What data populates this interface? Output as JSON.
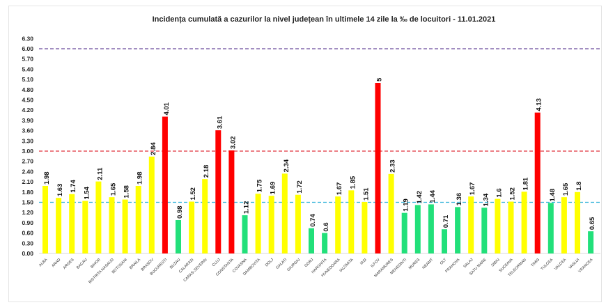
{
  "chart_data": {
    "type": "bar",
    "title": "Incidența cumulată a cazurilor la nivel județean în ultimele 14 zile la ‰ de locuitori - 11.01.2021",
    "xlabel": "",
    "ylabel": "",
    "ylim": [
      0,
      6.3
    ],
    "ytick_step": 0.3,
    "grid": false,
    "categories": [
      "ALBA",
      "ARAD",
      "ARGES",
      "BACAU",
      "BIHOR",
      "BISTRITA NASAUD",
      "BOTOSANI",
      "BRAILA",
      "BRASOV",
      "BUCURESTI",
      "BUZAU",
      "CALARASI",
      "CARAS-SEVERIN",
      "CLUJ",
      "CONSTANTA",
      "COVASNA",
      "DAMBOVITA",
      "DOLJ",
      "GALATI",
      "GIURGIU",
      "GORJ",
      "HARGHITA",
      "HUNEDOARA",
      "IALOMITA",
      "IASI",
      "ILFOV",
      "MARAMURES",
      "MEHEDINTI",
      "MURES",
      "NEAMT",
      "OLT",
      "PRAHOVA",
      "SALAJ",
      "SATU MARE",
      "SIBIU",
      "SUCEAVA",
      "TELEORMAN",
      "TIMIS",
      "TULCEA",
      "VALCEA",
      "VASLUI",
      "VRANCEA"
    ],
    "values": [
      1.98,
      1.63,
      1.74,
      1.54,
      2.11,
      1.65,
      1.58,
      1.98,
      2.84,
      4.01,
      0.98,
      1.52,
      2.18,
      3.61,
      3.02,
      1.12,
      1.75,
      1.69,
      2.34,
      1.72,
      0.74,
      0.6,
      1.67,
      1.85,
      1.51,
      5,
      2.33,
      1.19,
      1.42,
      1.44,
      0.71,
      1.36,
      1.67,
      1.34,
      1.6,
      1.52,
      1.81,
      4.13,
      1.48,
      1.65,
      1.8,
      0.65
    ],
    "value_labels": [
      "1.98",
      "1.63",
      "1.74",
      "1.54",
      "2.11",
      "1.65",
      "1.58",
      "1.98",
      "2.84",
      "4.01",
      "0.98",
      "1.52",
      "2.18",
      "3.61",
      "3.02",
      "1.12",
      "1.75",
      "1.69",
      "2.34",
      "1.72",
      "0.74",
      "0.6",
      "1.67",
      "1.85",
      "1.51",
      "5",
      "2.33",
      "1.19",
      "1.42",
      "1.44",
      "0.71",
      "1.36",
      "1.67",
      "1.34",
      "1.6",
      "1.52",
      "1.81",
      "4.13",
      "1.48",
      "1.65",
      "1.8",
      "0.65"
    ],
    "thresholds": [
      {
        "value": 6,
        "color": "#6a4a9c"
      },
      {
        "value": 3,
        "color": "#e0303a"
      },
      {
        "value": 1.5,
        "color": "#2ab0d8"
      }
    ],
    "colors": {
      "low": "#22e07a",
      "mid": "#ffff00",
      "high": "#ff0000"
    }
  }
}
